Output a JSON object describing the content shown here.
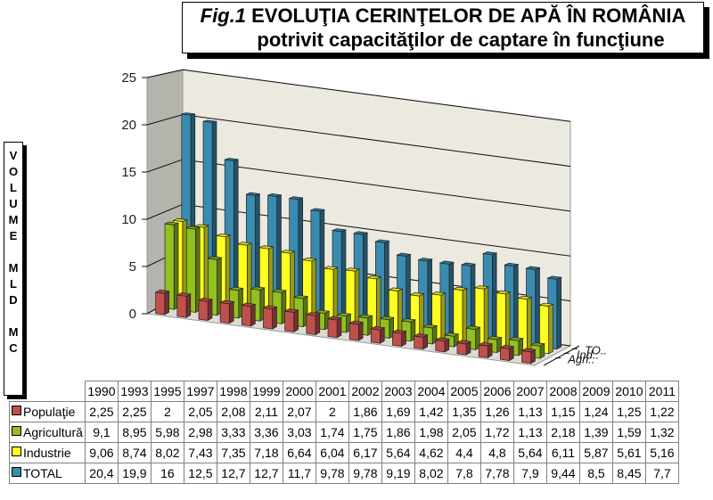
{
  "title": {
    "fig": "Fig.1",
    "line1": "EVOLUŢIA CERINŢELOR DE APĂ ÎN ROMÂNIA",
    "line2": "potrivit capacităţilor de captare în funcţiune"
  },
  "ylabel_letters": [
    "V",
    "O",
    "L",
    "U",
    "M",
    "E",
    "",
    "M",
    "L",
    "D",
    "",
    "M",
    "C"
  ],
  "depth_labels": [
    "TO..",
    "Ind..",
    "Agri.."
  ],
  "colors": {
    "populatie": "#c0504d",
    "agricultura": "#92c020",
    "industrie": "#ffff20",
    "total": "#3a8bb0"
  },
  "chart_data": {
    "type": "bar",
    "subtype": "3d-column",
    "title": "Fig.1 EVOLUŢIA CERINŢELOR DE APĂ ÎN ROMÂNIA potrivit capacităţilor de captare în funcţiune",
    "xlabel": "",
    "ylabel": "VOLUME MLD MC",
    "ylim": [
      0,
      25
    ],
    "yticks": [
      0,
      5,
      10,
      15,
      20,
      25
    ],
    "grid": true,
    "legend_position": "data-table",
    "categories": [
      "1990",
      "1993",
      "1995",
      "1997",
      "1998",
      "1999",
      "2000",
      "2001",
      "2002",
      "2003",
      "2004",
      "2005",
      "2006",
      "2007",
      "2008",
      "2009",
      "2010",
      "2011"
    ],
    "series": [
      {
        "name": "Populaţie",
        "values": [
          "2,25",
          "2,25",
          "2",
          "2,05",
          "2,08",
          "2,11",
          "2,07",
          "2",
          "1,86",
          "1,69",
          "1,42",
          "1,35",
          "1,26",
          "1,13",
          "1,15",
          "1,24",
          "1,25",
          "1,22"
        ]
      },
      {
        "name": "Agricultură",
        "values": [
          "9,1",
          "8,95",
          "5,98",
          "2,98",
          "3,33",
          "3,36",
          "3,03",
          "1,74",
          "1,75",
          "1,86",
          "1,98",
          "2,05",
          "1,72",
          "1,13",
          "2,18",
          "1,39",
          "1,59",
          "1,32"
        ]
      },
      {
        "name": "Industrie",
        "values": [
          "9,06",
          "8,74",
          "8,02",
          "7,43",
          "7,35",
          "7,18",
          "6,64",
          "6,04",
          "6,17",
          "5,64",
          "4,62",
          "4,4",
          "4,8",
          "5,64",
          "6,11",
          "5,87",
          "5,61",
          "5,16"
        ]
      },
      {
        "name": "TOTAL",
        "values": [
          "20,4",
          "19,9",
          "16",
          "12,5",
          "12,7",
          "12,7",
          "11,7",
          "9,78",
          "9,78",
          "9,19",
          "8,02",
          "7,8",
          "7,78",
          "7,9",
          "9,44",
          "8,5",
          "8,45",
          "7,7"
        ]
      }
    ]
  }
}
